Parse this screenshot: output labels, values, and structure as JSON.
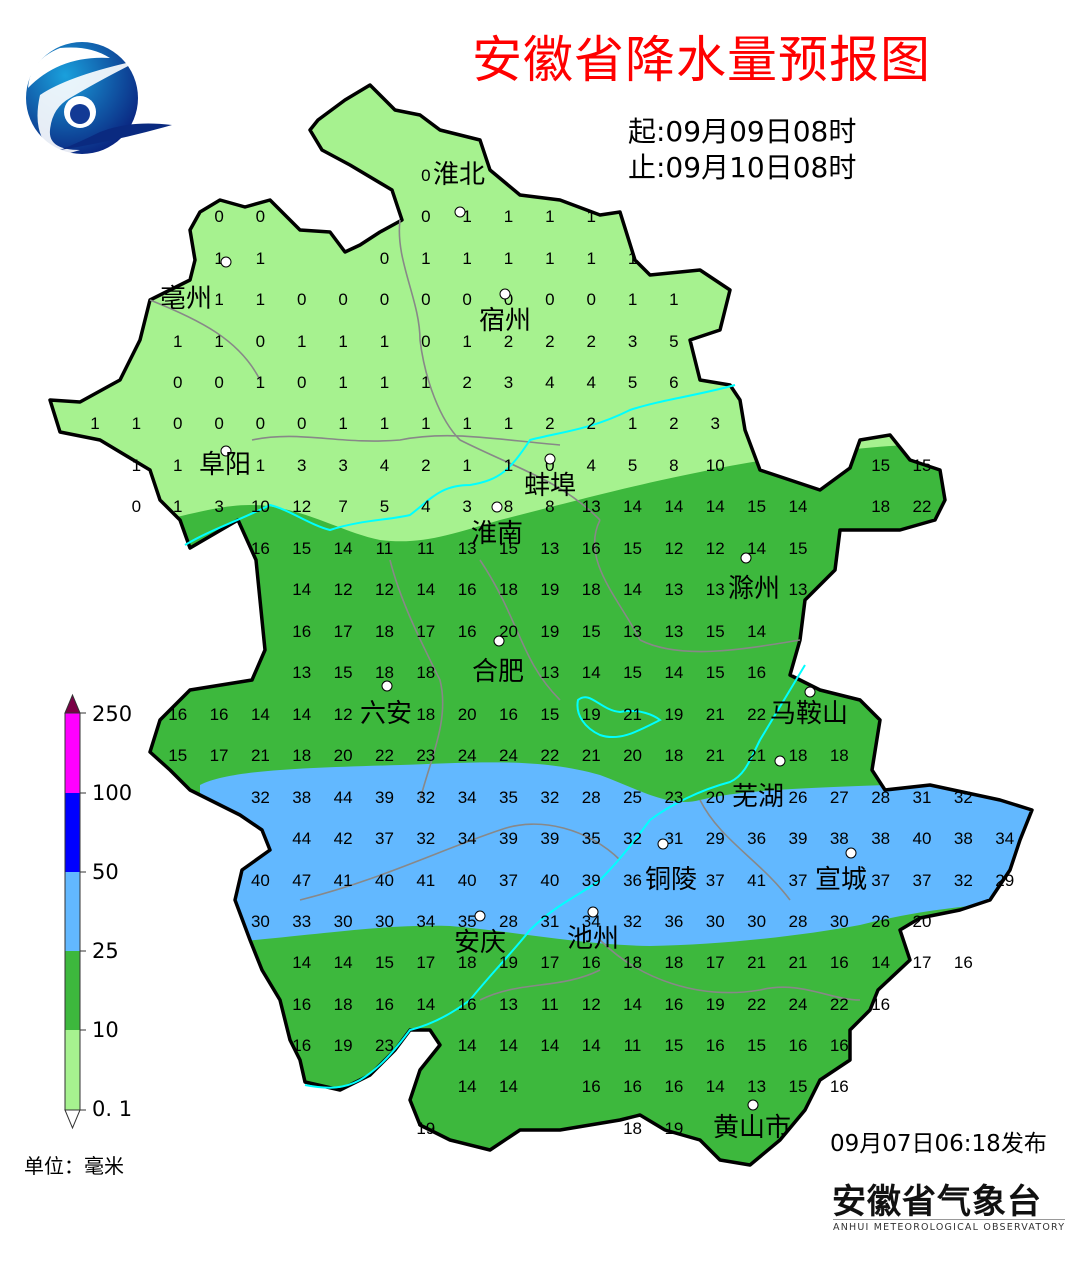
{
  "header": {
    "title": "安徽省降水量预报图",
    "start": "起:09月09日08时",
    "end": "止:09月10日08时"
  },
  "footer": {
    "issued": "09月07日06:18发布",
    "org_name": "安徽省气象台",
    "org_name_en": "ANHUI METEOROLOGICAL OBSERVATORY"
  },
  "logo": {
    "icon": "meteorological-logo-icon",
    "colors": [
      "#1a9ad6",
      "#0a2a80"
    ]
  },
  "legend": {
    "unit": "单位：毫米",
    "ticks": [
      "250",
      "100",
      "50",
      "25",
      "10",
      "0. 1"
    ],
    "bins": [
      {
        "range": "100-250",
        "color": "#ff00ff"
      },
      {
        "range": "50-100",
        "color": "#0000ff"
      },
      {
        "range": "25-50",
        "color": "#62b8ff"
      },
      {
        "range": "10-25",
        "color": "#3db83d"
      },
      {
        "range": "0.1-10",
        "color": "#a6f28f"
      }
    ],
    "over_color": "#7a0046",
    "under_color": "#ffffff"
  },
  "colors": {
    "river": "#00ffff",
    "boundary": "#000000",
    "county_line": "#888888"
  },
  "cities": [
    "淮北",
    "亳州",
    "宿州",
    "阜阳",
    "蚌埠",
    "淮南",
    "滁州",
    "合肥",
    "六安",
    "马鞍山",
    "芜湖",
    "铜陵",
    "宣城",
    "安庆",
    "池州",
    "黄山市"
  ],
  "grid_values": [
    {
      "c": 8,
      "v": [
        0
      ]
    },
    {
      "c": 3,
      "v": [
        0,
        0,
        null,
        null,
        null,
        0,
        1,
        1,
        1,
        1
      ]
    },
    {
      "c": 3,
      "v": [
        1,
        1,
        null,
        null,
        0,
        1,
        1,
        1,
        1,
        1,
        1
      ]
    },
    {
      "c": 3,
      "v": [
        1,
        1,
        0,
        0,
        0,
        0,
        0,
        0,
        0,
        0,
        1,
        1
      ]
    },
    {
      "c": 2,
      "v": [
        1,
        1,
        0,
        1,
        1,
        1,
        0,
        1,
        2,
        2,
        2,
        3,
        5
      ]
    },
    {
      "c": 2,
      "v": [
        0,
        0,
        1,
        0,
        1,
        1,
        1,
        2,
        3,
        4,
        4,
        5,
        6
      ]
    },
    {
      "c": 0,
      "v": [
        1,
        1,
        0,
        0,
        0,
        0,
        1,
        1,
        1,
        1,
        1,
        2,
        2,
        1,
        2,
        3
      ]
    },
    {
      "c": 1,
      "v": [
        1,
        1,
        null,
        1,
        3,
        3,
        4,
        2,
        1,
        1,
        0,
        4,
        5,
        8,
        10,
        null,
        null,
        null,
        15,
        15
      ]
    },
    {
      "c": 1,
      "v": [
        0,
        1,
        3,
        10,
        12,
        7,
        5,
        4,
        3,
        8,
        8,
        13,
        14,
        14,
        14,
        15,
        14,
        null,
        18,
        22
      ]
    },
    {
      "c": 4,
      "v": [
        16,
        15,
        14,
        11,
        11,
        13,
        15,
        13,
        16,
        15,
        12,
        12,
        14,
        15
      ]
    },
    {
      "c": 5,
      "v": [
        14,
        12,
        12,
        14,
        16,
        18,
        19,
        18,
        14,
        13,
        13,
        null,
        13
      ]
    },
    {
      "c": 5,
      "v": [
        16,
        17,
        18,
        17,
        16,
        20,
        19,
        15,
        13,
        13,
        15,
        14
      ]
    },
    {
      "c": 5,
      "v": [
        13,
        15,
        18,
        18,
        null,
        null,
        13,
        14,
        15,
        14,
        15,
        16
      ]
    },
    {
      "c": 2,
      "v": [
        16,
        16,
        14,
        14,
        12,
        null,
        18,
        20,
        16,
        15,
        19,
        21,
        19,
        21,
        22
      ]
    },
    {
      "c": 2,
      "v": [
        15,
        17,
        21,
        18,
        20,
        22,
        23,
        24,
        24,
        22,
        21,
        20,
        18,
        21,
        21,
        18,
        18
      ]
    },
    {
      "c": 4,
      "v": [
        32,
        38,
        44,
        39,
        32,
        34,
        35,
        32,
        28,
        25,
        23,
        20,
        null,
        26,
        27,
        28,
        31,
        32
      ]
    },
    {
      "c": 5,
      "v": [
        44,
        42,
        37,
        32,
        34,
        39,
        39,
        35,
        32,
        31,
        29,
        36,
        39,
        38,
        38,
        40,
        38,
        34
      ]
    },
    {
      "c": 4,
      "v": [
        40,
        47,
        41,
        40,
        41,
        40,
        37,
        40,
        39,
        36,
        null,
        37,
        41,
        37,
        null,
        37,
        37,
        32,
        29
      ]
    },
    {
      "c": 4,
      "v": [
        30,
        33,
        30,
        30,
        34,
        35,
        28,
        31,
        34,
        32,
        36,
        30,
        30,
        28,
        30,
        26,
        20
      ]
    },
    {
      "c": 5,
      "v": [
        14,
        14,
        15,
        17,
        18,
        19,
        17,
        16,
        18,
        18,
        17,
        21,
        21,
        16,
        14,
        17,
        16
      ]
    },
    {
      "c": 5,
      "v": [
        16,
        18,
        16,
        14,
        16,
        13,
        11,
        12,
        14,
        16,
        19,
        22,
        24,
        22,
        16
      ]
    },
    {
      "c": 5,
      "v": [
        16,
        19,
        23,
        null,
        14,
        14,
        14,
        14,
        11,
        15,
        16,
        15,
        16,
        16
      ]
    },
    {
      "c": 9,
      "v": [
        14,
        14,
        null,
        16,
        16,
        16,
        14,
        13,
        15,
        16
      ]
    },
    {
      "c": 8,
      "v": [
        19,
        null,
        null,
        null,
        null,
        18,
        19
      ]
    }
  ]
}
